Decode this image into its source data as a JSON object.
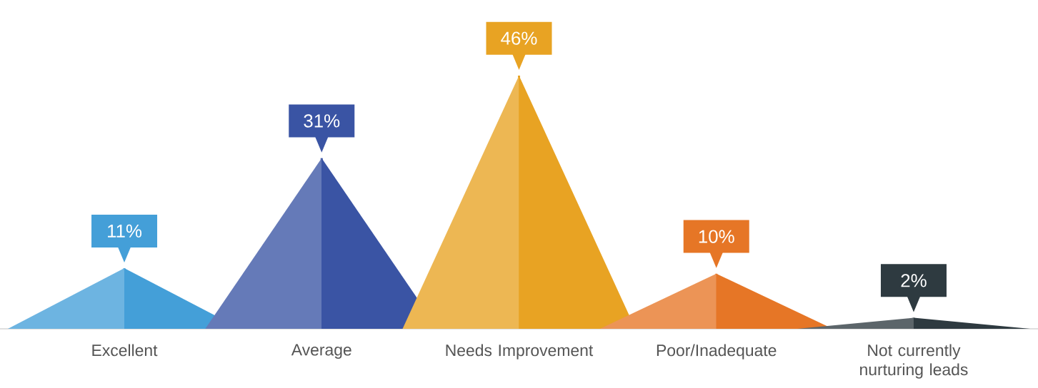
{
  "chart_data": {
    "type": "bar",
    "categories": [
      "Excellent",
      "Average",
      "Needs Improvement",
      "Poor/Inadequate",
      "Not currently nurturing leads"
    ],
    "values": [
      11,
      31,
      46,
      10,
      2
    ],
    "value_labels": [
      "11%",
      "31%",
      "46%",
      "10%",
      "2%"
    ],
    "colors": [
      "#449fd8",
      "#3a54a4",
      "#e8a323",
      "#e67626",
      "#2e3a40"
    ]
  }
}
